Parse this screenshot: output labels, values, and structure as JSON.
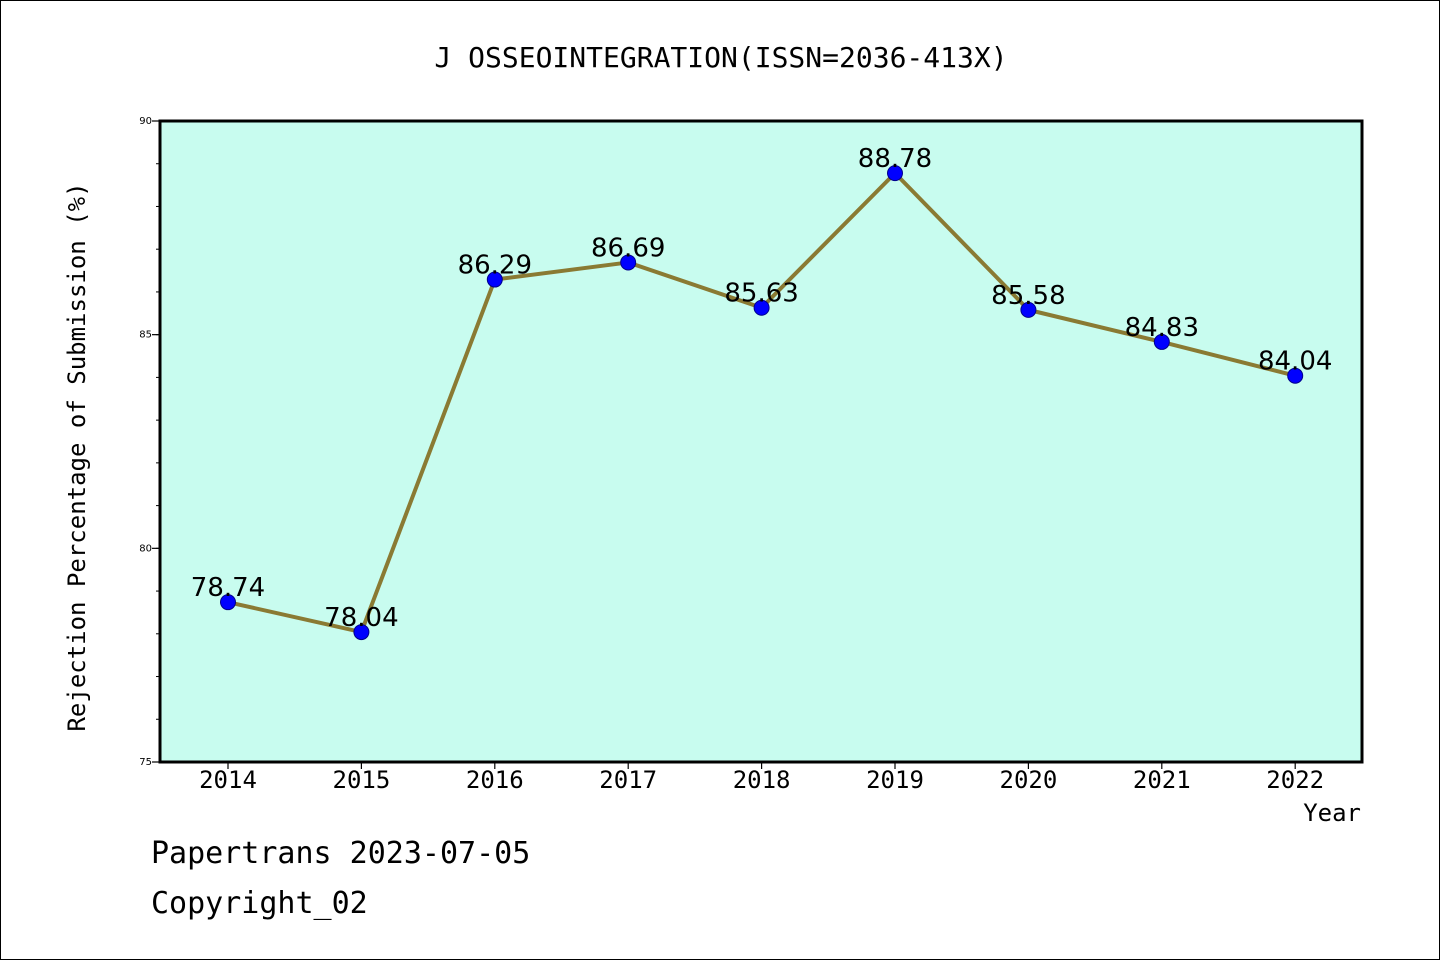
{
  "colors": {
    "plot_background": "#c8fcef",
    "line": "#8a7a33",
    "marker": "#0000ff",
    "marker_edge": "#00008b",
    "frame": "#000000"
  },
  "chart_data": {
    "type": "line",
    "title": "J OSSEOINTEGRATION(ISSN=2036-413X)",
    "xlabel": "Year",
    "ylabel": "Rejection Percentage of Submission (%)",
    "categories": [
      "2014",
      "2015",
      "2016",
      "2017",
      "2018",
      "2019",
      "2020",
      "2021",
      "2022"
    ],
    "values": [
      78.74,
      78.04,
      86.29,
      86.69,
      85.63,
      88.78,
      85.58,
      84.83,
      84.04
    ],
    "data_labels": [
      "78.74",
      "78.04",
      "86.29",
      "86.69",
      "85.63",
      "88.78",
      "85.58",
      "84.83",
      "84.04"
    ],
    "ylim": [
      75,
      90
    ],
    "y_major_ticks": [
      75,
      80,
      85,
      90
    ],
    "y_minor_step": 1,
    "grid": false,
    "legend": "none"
  },
  "footer": {
    "line1": "Papertrans 2023-07-05",
    "line2": "Copyright_02"
  }
}
